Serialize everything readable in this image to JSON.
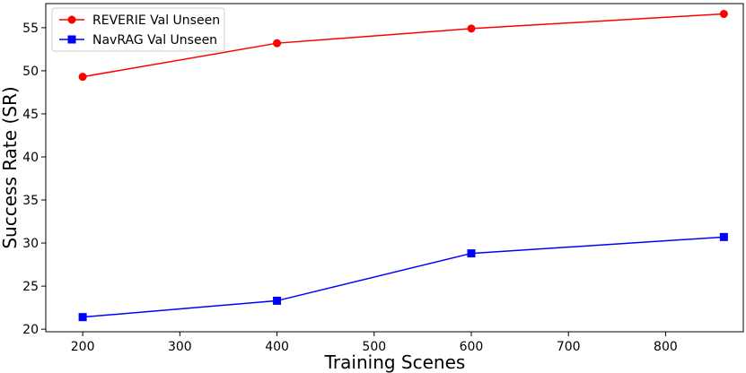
{
  "chart_data": {
    "type": "line",
    "xlabel": "Training Scenes",
    "ylabel": "Success Rate (SR)",
    "xlim": [
      162,
      880
    ],
    "ylim": [
      19.7,
      57.8
    ],
    "xticks": [
      200,
      300,
      400,
      500,
      600,
      700,
      800
    ],
    "yticks": [
      20,
      25,
      30,
      35,
      40,
      45,
      50,
      55
    ],
    "grid": false,
    "legend_position": "top-left",
    "series": [
      {
        "name": "REVERIE Val Unseen",
        "color": "#ff0000",
        "marker": "circle",
        "x": [
          200,
          400,
          600,
          860
        ],
        "y": [
          49.3,
          53.2,
          54.9,
          56.6
        ]
      },
      {
        "name": "NavRAG Val Unseen",
        "color": "#0000ff",
        "marker": "square",
        "x": [
          200,
          400,
          600,
          860
        ],
        "y": [
          21.4,
          23.3,
          28.8,
          30.7
        ]
      }
    ]
  }
}
